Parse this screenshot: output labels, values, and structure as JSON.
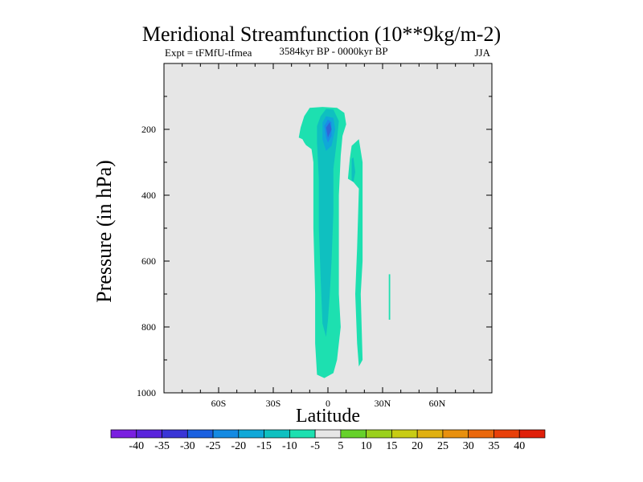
{
  "figure": {
    "title": "Meridional Streamfunction (10**9kg/m-2)",
    "subtitle_left": "Expt = tFMfU-tfmea",
    "subtitle_center": "3584kyr BP - 0000kyr BP",
    "subtitle_right": "JJA"
  },
  "chart_data": {
    "type": "heatmap",
    "title": "Meridional Streamfunction (10**9kg/m-2)",
    "xlabel": "Latitude",
    "ylabel": "Pressure (in hPa)",
    "xlim": [
      -90,
      90
    ],
    "ylim": [
      1000,
      0
    ],
    "x_ticks": [
      {
        "value": -60,
        "label": "60S"
      },
      {
        "value": -30,
        "label": "30S"
      },
      {
        "value": 0,
        "label": "0"
      },
      {
        "value": 30,
        "label": "30N"
      },
      {
        "value": 60,
        "label": "60N"
      }
    ],
    "y_ticks": [
      {
        "value": 200,
        "label": "200"
      },
      {
        "value": 400,
        "label": "400"
      },
      {
        "value": 600,
        "label": "600"
      },
      {
        "value": 800,
        "label": "800"
      },
      {
        "value": 1000,
        "label": "1000"
      }
    ],
    "background_color": "#e6e6e6",
    "regions": [
      {
        "name": "main-cell-level-5",
        "level": -5,
        "color": "#1de0b0",
        "points": [
          [
            -14,
            230
          ],
          [
            -16,
            225
          ],
          [
            -15,
            195
          ],
          [
            -13,
            160
          ],
          [
            -10,
            135
          ],
          [
            -3,
            132
          ],
          [
            5,
            135
          ],
          [
            9,
            150
          ],
          [
            10,
            185
          ],
          [
            8,
            220
          ],
          [
            7,
            280
          ],
          [
            6,
            400
          ],
          [
            6,
            600
          ],
          [
            6,
            700
          ],
          [
            7,
            800
          ],
          [
            5,
            900
          ],
          [
            3,
            940
          ],
          [
            -2,
            955
          ],
          [
            -4,
            950
          ],
          [
            -6,
            945
          ],
          [
            -7,
            850
          ],
          [
            -7,
            700
          ],
          [
            -8,
            500
          ],
          [
            -8,
            300
          ],
          [
            -9,
            260
          ],
          [
            -12,
            248
          ],
          [
            -13,
            240
          ]
        ]
      },
      {
        "name": "main-cell-level-10",
        "level": -10,
        "color": "#0fc0c0",
        "points": [
          [
            -4,
            160
          ],
          [
            -1,
            138
          ],
          [
            3,
            140
          ],
          [
            6,
            175
          ],
          [
            5,
            230
          ],
          [
            3,
            320
          ],
          [
            3,
            450
          ],
          [
            2,
            600
          ],
          [
            1,
            700
          ],
          [
            0,
            780
          ],
          [
            -1,
            830
          ],
          [
            -3,
            790
          ],
          [
            -4,
            650
          ],
          [
            -5,
            500
          ],
          [
            -5,
            350
          ],
          [
            -6,
            240
          ],
          [
            -6,
            190
          ]
        ]
      },
      {
        "name": "main-cell-level-15",
        "level": -15,
        "color": "#10a8d8",
        "points": [
          [
            -3,
            180
          ],
          [
            -1,
            160
          ],
          [
            3,
            165
          ],
          [
            4,
            200
          ],
          [
            2,
            250
          ],
          [
            -1,
            265
          ],
          [
            -3,
            230
          ]
        ]
      },
      {
        "name": "main-cell-level-20",
        "level": -20,
        "color": "#1a8ce6",
        "points": [
          [
            -2,
            190
          ],
          [
            0,
            170
          ],
          [
            2,
            178
          ],
          [
            2,
            220
          ],
          [
            0,
            240
          ],
          [
            -1,
            225
          ]
        ]
      },
      {
        "name": "main-cell-level-25",
        "level": -25,
        "color": "#2f66d8",
        "points": [
          [
            -1,
            195
          ],
          [
            1,
            178
          ],
          [
            2,
            200
          ],
          [
            0,
            225
          ]
        ]
      },
      {
        "name": "secondary-cell-level-5",
        "level": -5,
        "color": "#1de0b0",
        "points": [
          [
            13,
            250
          ],
          [
            17,
            230
          ],
          [
            19,
            300
          ],
          [
            19,
            600
          ],
          [
            18,
            700
          ],
          [
            19,
            900
          ],
          [
            17,
            920
          ],
          [
            16,
            850
          ],
          [
            15,
            700
          ],
          [
            16,
            560
          ],
          [
            17,
            380
          ],
          [
            14,
            360
          ],
          [
            11,
            350
          ],
          [
            12,
            290
          ]
        ]
      },
      {
        "name": "secondary-cell-level-10",
        "level": -10,
        "color": "#0fc0c0",
        "points": [
          [
            13,
            290
          ],
          [
            14,
            285
          ],
          [
            15,
            330
          ],
          [
            14,
            360
          ],
          [
            13,
            355
          ]
        ]
      },
      {
        "name": "thin-strip-level-5",
        "level": -5,
        "color": "#1de0b0",
        "points": [
          [
            33.4,
            640
          ],
          [
            34.2,
            640
          ],
          [
            34.2,
            778
          ],
          [
            33.4,
            778
          ]
        ]
      }
    ],
    "colorbar": {
      "levels": [
        -40,
        -35,
        -30,
        -25,
        -20,
        -15,
        -10,
        -5,
        5,
        10,
        15,
        20,
        25,
        30,
        35,
        40
      ],
      "colors": [
        "#7a1fe0",
        "#5a24dc",
        "#3a35d6",
        "#1a60e0",
        "#148ae2",
        "#10a8d8",
        "#0fc0c0",
        "#1de0b0",
        "#e6e6e6",
        "#66d12a",
        "#9ad01c",
        "#c8cc14",
        "#e0b010",
        "#e8900e",
        "#ea680c",
        "#e8400a",
        "#e0200a"
      ]
    }
  }
}
